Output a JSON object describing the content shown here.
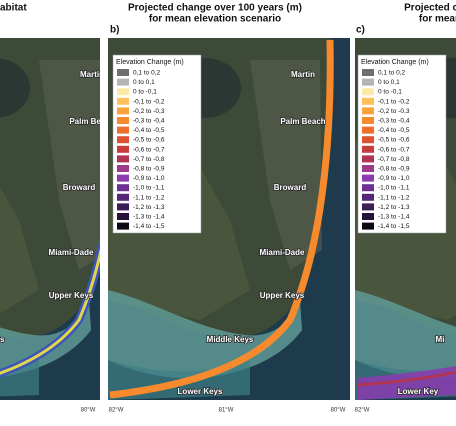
{
  "panels": [
    {
      "letter": null,
      "title": [
        "abitat"
      ],
      "places": [
        "Martin",
        "Palm Beach",
        "Broward",
        "Miami-Dade",
        "Upper Keys",
        "ys"
      ],
      "axis": [
        "80°W"
      ]
    },
    {
      "letter": "b)",
      "title": [
        "Projected change over 100 years (m)",
        "for mean elevation scenario"
      ],
      "places": [
        "Martin",
        "Palm Beach",
        "Broward",
        "Miami-Dade",
        "Upper Keys",
        "Middle Keys",
        "Lower Keys"
      ],
      "axis": [
        "82°W",
        "81°W",
        "80°W"
      ]
    },
    {
      "letter": "c)",
      "title": [
        "Projected chan",
        "for mean"
      ],
      "places": [
        "Mi",
        "Lower Key"
      ],
      "axis": [
        "82°W"
      ]
    }
  ],
  "legend": {
    "title": "Elevation Change (m)",
    "items": [
      {
        "label": "0,1 to 0,2",
        "color": "#6e6e6e"
      },
      {
        "label": "0 to 0,1",
        "color": "#b4b4b4"
      },
      {
        "label": "0 to -0,1",
        "color": "#fde9a6"
      },
      {
        "label": "-0,1 to -0,2",
        "color": "#fdc25a"
      },
      {
        "label": "-0,2 to -0,3",
        "color": "#fca43c"
      },
      {
        "label": "-0,3 to -0,4",
        "color": "#f88a2e"
      },
      {
        "label": "-0,4 to -0,5",
        "color": "#ee6e2c"
      },
      {
        "label": "-0,5 to -0,6",
        "color": "#dd5332"
      },
      {
        "label": "-0,6 to -0,7",
        "color": "#c63d3c"
      },
      {
        "label": "-0,7 to -0,8",
        "color": "#b13553"
      },
      {
        "label": "-0,8 to -0,9",
        "color": "#9e3a8a"
      },
      {
        "label": "-0,9 to -1,0",
        "color": "#8b3ab0"
      },
      {
        "label": "-1,0 to -1,1",
        "color": "#6e3094"
      },
      {
        "label": "-1,1 to -1,2",
        "color": "#552777"
      },
      {
        "label": "-1,2 to -1,3",
        "color": "#3c1d58"
      },
      {
        "label": "-1,3 to -1,4",
        "color": "#26133a"
      },
      {
        "label": "-1,4 to -1,5",
        "color": "#0d0814"
      }
    ]
  }
}
